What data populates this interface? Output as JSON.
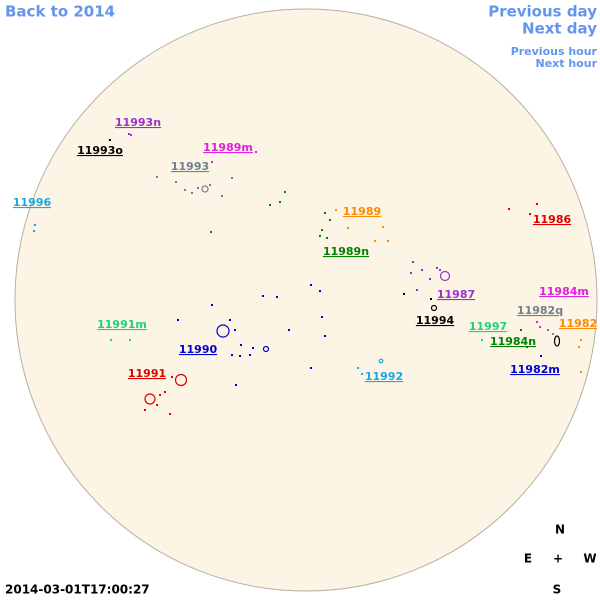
{
  "navigation": {
    "back": "Back to 2014",
    "previous_day": "Previous day",
    "next_day": "Next day",
    "previous_hour": "Previous hour",
    "next_hour": "Next hour"
  },
  "timestamp": "2014-03-01T17:00:27",
  "compass": {
    "north": "N",
    "east": "E",
    "center": "+",
    "west": "W",
    "south": "S"
  },
  "regions": [
    {
      "label": "11993n",
      "color": "#9b30d0"
    },
    {
      "label": "11993o",
      "color": "#000000"
    },
    {
      "label": "11989m",
      "color": "#e020e0"
    },
    {
      "label": "11993",
      "color": "#708090"
    },
    {
      "label": "11996",
      "color": "#1aa8e0"
    },
    {
      "label": "11989",
      "color": "#ff8c00"
    },
    {
      "label": "11986",
      "color": "#e00000"
    },
    {
      "label": "11989n",
      "color": "#008000"
    },
    {
      "label": "11987",
      "color": "#9b30d0"
    },
    {
      "label": "11984m",
      "color": "#e020e0"
    },
    {
      "label": "11982q",
      "color": "#708090"
    },
    {
      "label": "11982",
      "color": "#ff8c00"
    },
    {
      "label": "11994",
      "color": "#000000"
    },
    {
      "label": "11997",
      "color": "#20d080"
    },
    {
      "label": "11984n",
      "color": "#008000"
    },
    {
      "label": "11991m",
      "color": "#20d080"
    },
    {
      "label": "11990",
      "color": "#0000d0"
    },
    {
      "label": "11992",
      "color": "#1aa8e0"
    },
    {
      "label": "11982m",
      "color": "#0000d0"
    },
    {
      "label": "11991",
      "color": "#e00000"
    }
  ]
}
